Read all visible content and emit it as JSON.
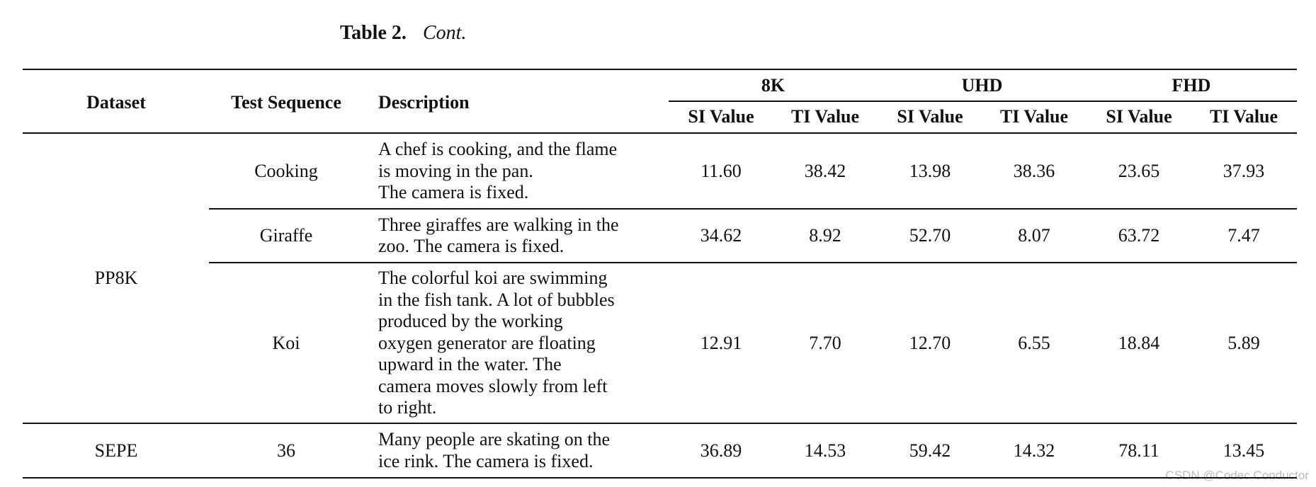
{
  "caption": {
    "label": "Table 2.",
    "text": "Cont."
  },
  "table": {
    "headers": {
      "dataset": "Dataset",
      "sequence": "Test Sequence",
      "description": "Description",
      "groups": [
        "8K",
        "UHD",
        "FHD"
      ],
      "subheaders": [
        "SI Value",
        "TI Value",
        "SI Value",
        "TI Value",
        "SI Value",
        "TI Value"
      ]
    },
    "groups": [
      {
        "dataset": "PP8K",
        "rows": [
          {
            "sequence": "Cooking",
            "description": [
              "A chef is cooking, and the flame",
              "is moving in the pan.",
              "The camera is fixed."
            ],
            "values": [
              "11.60",
              "38.42",
              "13.98",
              "38.36",
              "23.65",
              "37.93"
            ]
          },
          {
            "sequence": "Giraffe",
            "description": [
              "Three giraffes are walking in the",
              "zoo. The camera is fixed."
            ],
            "values": [
              "34.62",
              "8.92",
              "52.70",
              "8.07",
              "63.72",
              "7.47"
            ]
          },
          {
            "sequence": "Koi",
            "description": [
              "The colorful koi are swimming",
              "in the fish tank. A lot of bubbles",
              "produced by the working",
              "oxygen generator are floating",
              "upward in the water. The",
              "camera moves slowly from left",
              "to right."
            ],
            "values": [
              "12.91",
              "7.70",
              "12.70",
              "6.55",
              "18.84",
              "5.89"
            ]
          }
        ]
      },
      {
        "dataset": "SEPE",
        "rows": [
          {
            "sequence": "36",
            "description": [
              "Many people are skating on the",
              "ice rink. The camera is fixed."
            ],
            "values": [
              "36.89",
              "14.53",
              "59.42",
              "14.32",
              "78.11",
              "13.45"
            ]
          }
        ]
      }
    ]
  },
  "watermark": "CSDN @Codec Conductor"
}
